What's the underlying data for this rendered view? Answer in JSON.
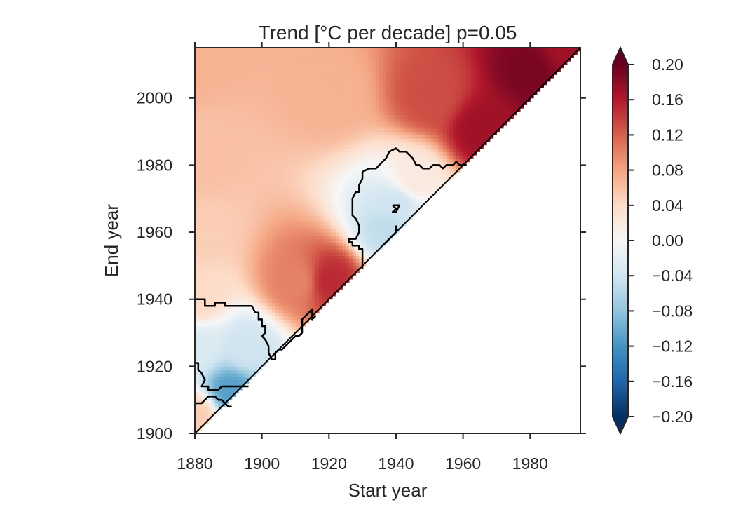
{
  "chart_data": {
    "type": "heatmap",
    "title": "Trend [°C per decade] p=0.05",
    "xlabel": "Start year",
    "ylabel": "End year",
    "xlim": [
      1880,
      1995
    ],
    "ylim": [
      1900,
      2015
    ],
    "xticks": [
      1880,
      1900,
      1920,
      1940,
      1960,
      1980
    ],
    "yticks": [
      1900,
      1920,
      1940,
      1960,
      1980,
      2000
    ],
    "xtick_labels": [
      "1880",
      "1900",
      "1920",
      "1940",
      "1960",
      "1980"
    ],
    "ytick_labels": [
      "1900",
      "1920",
      "1940",
      "1960",
      "1980",
      "2000"
    ],
    "grid": false,
    "colormap": "RdBu_r",
    "colorbar": {
      "range": [
        -0.2,
        0.2
      ],
      "extend": "both",
      "ticks": [
        0.2,
        0.16,
        0.12,
        0.08,
        0.04,
        0.0,
        -0.04,
        -0.08,
        -0.12,
        -0.16,
        -0.2
      ],
      "tick_labels": [
        "0.20",
        "0.16",
        "0.12",
        "0.08",
        "0.04",
        "0.00",
        "−0.04",
        "−0.08",
        "−0.12",
        "−0.16",
        "−0.20"
      ]
    },
    "valid_region": "end_year >= start_year + 20",
    "trend_anchors": [
      {
        "start": 1880,
        "end": 1905,
        "value": 0.05
      },
      {
        "start": 1880,
        "end": 1925,
        "value": -0.03
      },
      {
        "start": 1880,
        "end": 1940,
        "value": 0.04
      },
      {
        "start": 1880,
        "end": 1960,
        "value": 0.05
      },
      {
        "start": 1880,
        "end": 1980,
        "value": 0.06
      },
      {
        "start": 1880,
        "end": 2014,
        "value": 0.07
      },
      {
        "start": 1890,
        "end": 1912,
        "value": -0.11
      },
      {
        "start": 1895,
        "end": 1925,
        "value": -0.04
      },
      {
        "start": 1910,
        "end": 1945,
        "value": 0.1
      },
      {
        "start": 1920,
        "end": 1945,
        "value": 0.15
      },
      {
        "start": 1920,
        "end": 2000,
        "value": 0.07
      },
      {
        "start": 1937,
        "end": 1960,
        "value": -0.05
      },
      {
        "start": 1940,
        "end": 1968,
        "value": -0.04
      },
      {
        "start": 1945,
        "end": 1975,
        "value": 0.02
      },
      {
        "start": 1950,
        "end": 2000,
        "value": 0.13
      },
      {
        "start": 1965,
        "end": 1990,
        "value": 0.17
      },
      {
        "start": 1980,
        "end": 2008,
        "value": 0.19
      },
      {
        "start": 1990,
        "end": 2014,
        "value": 0.17
      }
    ],
    "significance_contours": [
      {
        "name": "early-negative-region",
        "points": [
          [
            1880,
            1940
          ],
          [
            1883,
            1940
          ],
          [
            1883,
            1938
          ],
          [
            1886,
            1938
          ],
          [
            1886,
            1939
          ],
          [
            1889,
            1939
          ],
          [
            1889,
            1938
          ],
          [
            1897,
            1938
          ],
          [
            1898,
            1936
          ],
          [
            1899,
            1936
          ],
          [
            1899,
            1934
          ],
          [
            1900,
            1934
          ],
          [
            1900,
            1932
          ],
          [
            1901,
            1932
          ],
          [
            1901,
            1930
          ],
          [
            1900,
            1929
          ],
          [
            1901,
            1928
          ],
          [
            1902,
            1926
          ],
          [
            1902,
            1924
          ],
          [
            1903,
            1922
          ],
          [
            1904,
            1922
          ],
          [
            1904,
            1924
          ],
          [
            1905,
            1925
          ],
          [
            1906,
            1925
          ],
          [
            1910,
            1929
          ],
          [
            1911,
            1929
          ],
          [
            1912,
            1930
          ],
          [
            1912,
            1934
          ],
          [
            1915,
            1937
          ],
          [
            1915,
            1934
          ],
          [
            1916,
            1935
          ]
        ]
      },
      {
        "name": "early-negative-lower",
        "points": [
          [
            1880,
            1921
          ],
          [
            1881,
            1921
          ],
          [
            1881,
            1919
          ],
          [
            1882,
            1918
          ],
          [
            1883,
            1916
          ],
          [
            1882,
            1914
          ],
          [
            1884,
            1914
          ],
          [
            1884,
            1913
          ],
          [
            1887,
            1913
          ],
          [
            1888,
            1914
          ],
          [
            1895,
            1914
          ],
          [
            1896,
            1914
          ]
        ]
      },
      {
        "name": "early-negative-bottom",
        "points": [
          [
            1880,
            1909
          ],
          [
            1882,
            1909
          ],
          [
            1884,
            1911
          ],
          [
            1886,
            1911
          ],
          [
            1887,
            1910
          ],
          [
            1888,
            1910
          ],
          [
            1890,
            1908
          ],
          [
            1891,
            1908
          ]
        ]
      },
      {
        "name": "mid-negative-region",
        "points": [
          [
            1930,
            1949
          ],
          [
            1930,
            1955
          ],
          [
            1929,
            1955
          ],
          [
            1929,
            1956
          ],
          [
            1927,
            1956
          ],
          [
            1927,
            1957
          ],
          [
            1926,
            1957
          ],
          [
            1926,
            1958
          ],
          [
            1928,
            1958
          ],
          [
            1929,
            1960
          ],
          [
            1929,
            1962
          ],
          [
            1928,
            1964
          ],
          [
            1927,
            1965
          ],
          [
            1927,
            1970
          ],
          [
            1928,
            1972
          ],
          [
            1929,
            1972
          ],
          [
            1929,
            1974
          ],
          [
            1930,
            1976
          ],
          [
            1930,
            1978
          ],
          [
            1932,
            1979
          ],
          [
            1934,
            1979
          ],
          [
            1937,
            1982
          ],
          [
            1938,
            1984
          ],
          [
            1940,
            1985
          ],
          [
            1941,
            1984
          ],
          [
            1943,
            1984
          ],
          [
            1945,
            1982
          ],
          [
            1946,
            1980
          ],
          [
            1947,
            1980
          ],
          [
            1948,
            1979
          ],
          [
            1950,
            1979
          ],
          [
            1951,
            1980
          ],
          [
            1953,
            1980
          ],
          [
            1954,
            1979
          ],
          [
            1955,
            1980
          ],
          [
            1957,
            1980
          ],
          [
            1958,
            1981
          ],
          [
            1959,
            1980
          ],
          [
            1961,
            1980
          ]
        ]
      },
      {
        "name": "small-loop-upper",
        "points": [
          [
            1939,
            1968
          ],
          [
            1941,
            1968
          ],
          [
            1940,
            1966
          ],
          [
            1939,
            1966
          ],
          [
            1940,
            1967
          ],
          [
            1939,
            1968
          ]
        ]
      },
      {
        "name": "small-loop-lower",
        "points": [
          [
            1936,
            1956
          ],
          [
            1938,
            1958
          ],
          [
            1939,
            1959
          ],
          [
            1940,
            1960
          ],
          [
            1940,
            1962
          ]
        ]
      }
    ]
  }
}
